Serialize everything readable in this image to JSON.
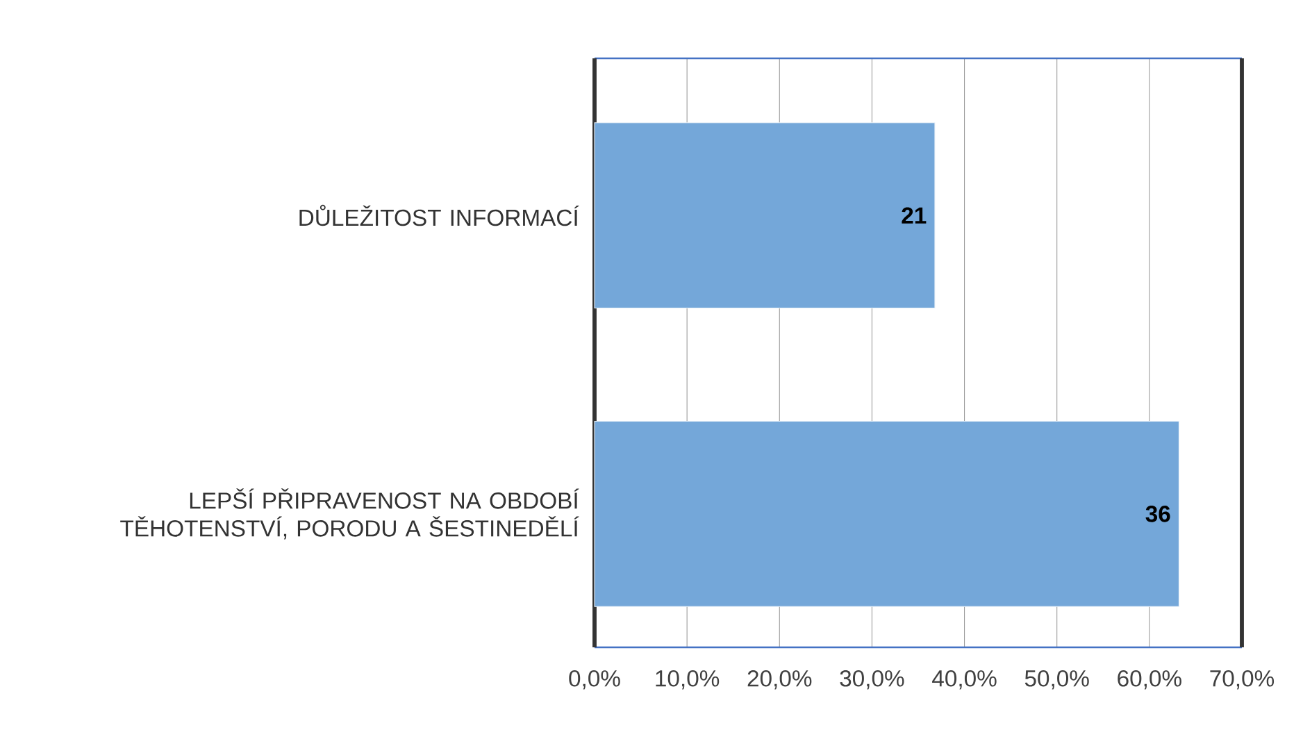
{
  "chart_data": {
    "type": "bar",
    "orientation": "horizontal",
    "categories": [
      "DŮLEŽITOST INFORMACÍ",
      "LEPŠÍ PŘIPRAVENOST NA OBDOBÍ TĚHOTENSTVÍ, PORODU A ŠESTINEDĚLÍ"
    ],
    "values": [
      36.8,
      63.2
    ],
    "annotations": [
      {
        "text": "21",
        "x": 36.8,
        "y": "DŮLEŽITOST INFORMACÍ"
      },
      {
        "text": "36",
        "x": 63.2,
        "y": "LEPŠÍ PŘIPRAVENOST NA OBDOBÍ TĚHOTENSTVÍ, PORODU A ŠESTINEDĚLÍ"
      }
    ],
    "color": "#74a7d9",
    "xlim": [
      0,
      70
    ],
    "xticks": [
      {
        "value": 0,
        "label": "0,0%"
      },
      {
        "value": 10,
        "label": "10,0%"
      },
      {
        "value": 20,
        "label": "20,0%"
      },
      {
        "value": 30,
        "label": "30,0%"
      },
      {
        "value": 40,
        "label": "40,0%"
      },
      {
        "value": 50,
        "label": "50,0%"
      },
      {
        "value": 60,
        "label": "60,0%"
      },
      {
        "value": 70,
        "label": "70,0%"
      }
    ],
    "grid": "x"
  }
}
